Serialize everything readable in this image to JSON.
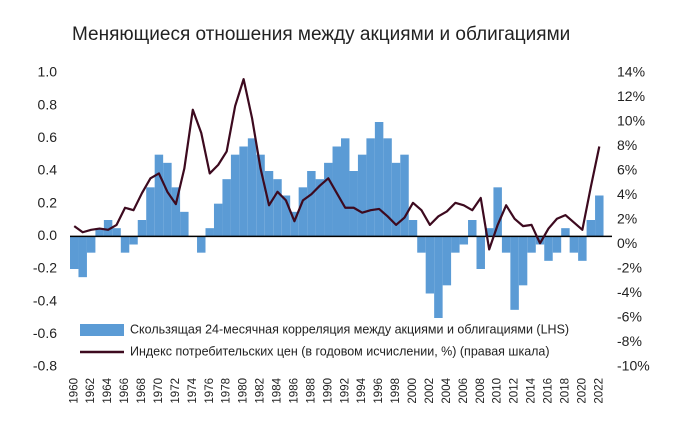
{
  "chart_data": {
    "type": "bar-line",
    "title": "Меняющиеся отношения между акциями и облигациями",
    "x": [
      1960,
      1961,
      1962,
      1963,
      1964,
      1965,
      1966,
      1967,
      1968,
      1969,
      1970,
      1971,
      1972,
      1973,
      1974,
      1975,
      1976,
      1977,
      1978,
      1979,
      1980,
      1981,
      1982,
      1983,
      1984,
      1985,
      1986,
      1987,
      1988,
      1989,
      1990,
      1991,
      1992,
      1993,
      1994,
      1995,
      1996,
      1997,
      1998,
      1999,
      2000,
      2001,
      2002,
      2003,
      2004,
      2005,
      2006,
      2007,
      2008,
      2009,
      2010,
      2011,
      2012,
      2013,
      2014,
      2015,
      2016,
      2017,
      2018,
      2019,
      2020,
      2021,
      2022
    ],
    "xlim": [
      1959.5,
      2023.5
    ],
    "xticks": [
      1960,
      1962,
      1964,
      1966,
      1968,
      1970,
      1972,
      1974,
      1976,
      1978,
      1980,
      1982,
      1984,
      1986,
      1988,
      1990,
      1992,
      1994,
      1996,
      1998,
      2000,
      2002,
      2004,
      2006,
      2008,
      2010,
      2012,
      2014,
      2016,
      2018,
      2020,
      2022
    ],
    "ylim": [
      -0.8,
      1.0
    ],
    "yticks": [
      {
        "value": 1.0,
        "label": "1.0"
      },
      0.8,
      0.6,
      0.4,
      0.2,
      {
        "value": 0,
        "label": "0.0"
      },
      -0.2,
      -0.4,
      -0.6,
      -0.8
    ],
    "y2lim": [
      -10,
      14
    ],
    "y2ticks": [
      {
        "value": 14,
        "label": "14%"
      },
      {
        "value": 12,
        "label": "12%"
      },
      {
        "value": 10,
        "label": "10%"
      },
      {
        "value": 8,
        "label": "8%"
      },
      {
        "value": 6,
        "label": "6%"
      },
      {
        "value": 4,
        "label": "4%"
      },
      {
        "value": 2,
        "label": "2%"
      },
      {
        "value": 0,
        "label": "0%"
      },
      {
        "value": -2,
        "label": "-2%"
      },
      {
        "value": -4,
        "label": "-4%"
      },
      {
        "value": -6,
        "label": "-6%"
      },
      {
        "value": -8,
        "label": "-8%"
      },
      {
        "value": -10,
        "label": "-10%"
      }
    ],
    "grid": false,
    "legend": "lower left",
    "series": [
      {
        "name": "Скользящая 24-месячная корреляция между акциями и облигациями (LHS)",
        "type": "bar",
        "color": "#5b9bd5",
        "values": [
          -0.2,
          -0.25,
          -0.1,
          0.05,
          0.1,
          0.05,
          -0.1,
          -0.05,
          0.1,
          0.3,
          0.5,
          0.45,
          0.3,
          0.15,
          0.0,
          -0.1,
          0.05,
          0.2,
          0.35,
          0.5,
          0.55,
          0.6,
          0.5,
          0.4,
          0.35,
          0.25,
          0.15,
          0.3,
          0.4,
          0.35,
          0.45,
          0.55,
          0.6,
          0.4,
          0.5,
          0.6,
          0.7,
          0.6,
          0.45,
          0.5,
          0.1,
          -0.1,
          -0.35,
          -0.5,
          -0.3,
          -0.1,
          -0.05,
          0.1,
          -0.2,
          0.05,
          0.3,
          -0.1,
          -0.45,
          -0.3,
          -0.1,
          -0.05,
          -0.15,
          -0.1,
          0.05,
          -0.1,
          -0.15,
          0.1,
          0.25
        ]
      },
      {
        "name": "Индекс потребительских цен (в годовом исчислении, %) (правая шкала)",
        "type": "line",
        "axis": "y2",
        "color": "#3d0a1f",
        "values": [
          1.5,
          1.0,
          1.2,
          1.3,
          1.2,
          1.6,
          3.0,
          2.8,
          4.2,
          5.4,
          5.8,
          4.3,
          3.3,
          6.2,
          11.0,
          9.1,
          5.8,
          6.5,
          7.6,
          11.3,
          13.5,
          10.3,
          6.2,
          3.2,
          4.3,
          3.6,
          1.9,
          3.6,
          4.1,
          4.8,
          5.4,
          4.2,
          3.0,
          3.0,
          2.6,
          2.8,
          2.9,
          2.3,
          1.6,
          2.2,
          3.4,
          2.8,
          1.6,
          2.3,
          2.7,
          3.4,
          3.2,
          2.8,
          3.8,
          -0.4,
          1.6,
          3.2,
          2.1,
          1.5,
          1.6,
          0.1,
          1.3,
          2.1,
          2.4,
          1.8,
          1.2,
          4.7,
          8.0
        ]
      }
    ]
  }
}
